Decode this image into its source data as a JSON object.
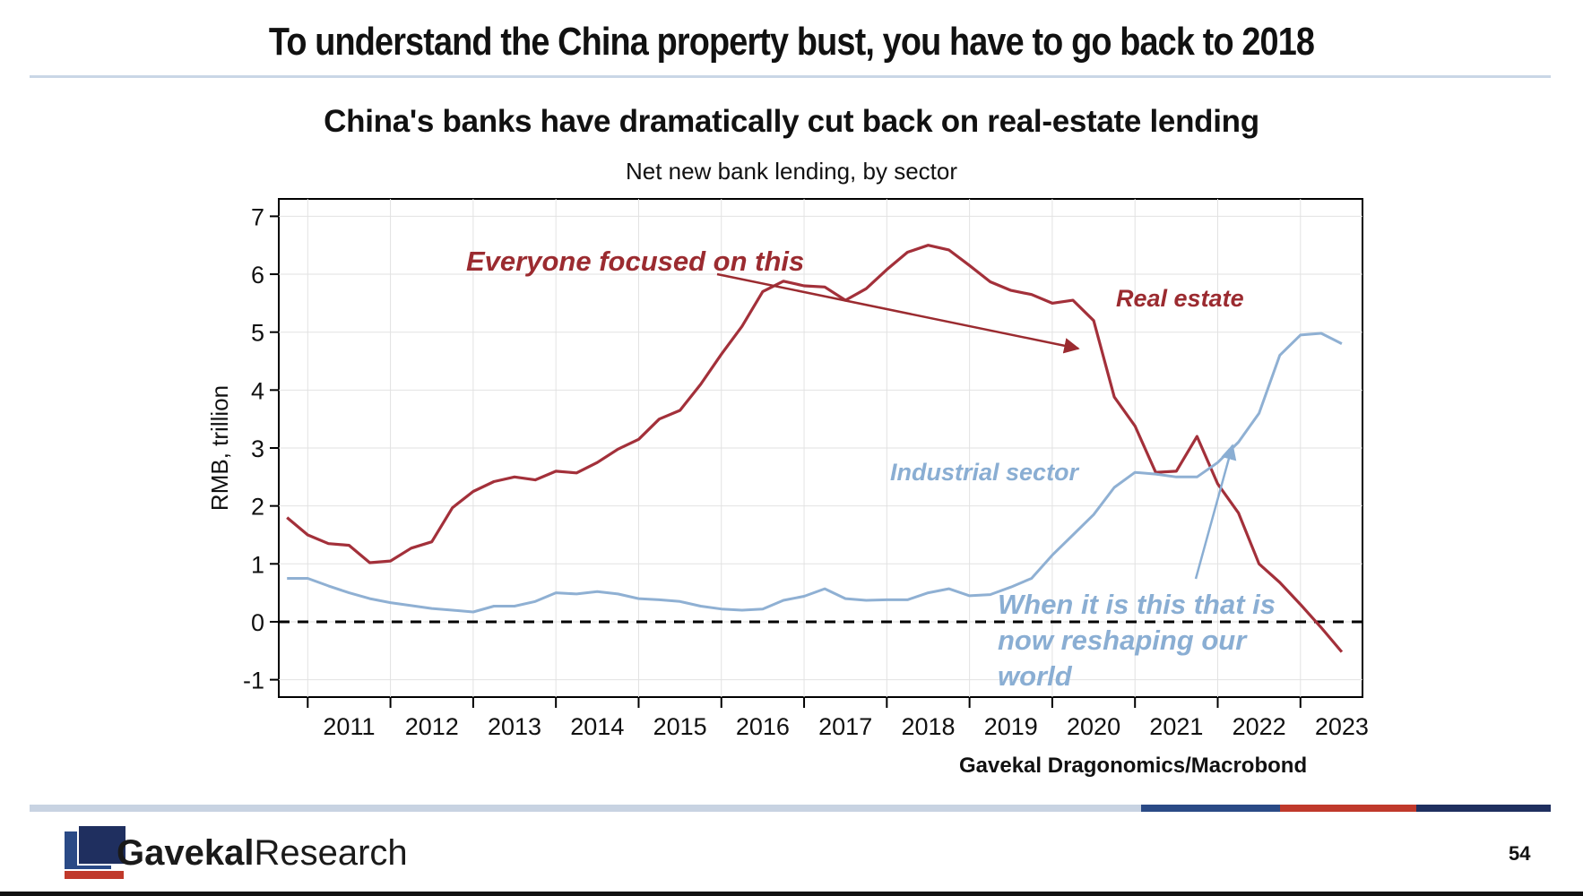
{
  "slide": {
    "title": "To understand the China property bust, you have to go back to 2018",
    "page_number": "54",
    "brand_bold": "Gavekal",
    "brand_regular": "Research",
    "source": "Gavekal Dragonomics/Macrobond"
  },
  "colors": {
    "real_estate": "#a3303a",
    "industrial": "#8fb0d3",
    "annotation_red": "#9b2b30",
    "annotation_blue": "#8aaed3"
  },
  "annotations": {
    "everyone_focused": "Everyone focused on this",
    "when_it_is_line1": "When it is this that is",
    "when_it_is_line2": "now reshaping our",
    "when_it_is_line3": "world"
  },
  "chart_data": {
    "type": "line",
    "title": "China's banks have dramatically cut back on real-estate lending",
    "subtitle": "Net new bank lending, by sector",
    "ylabel": "RMB, trillion",
    "xlabel": "",
    "ylim": [
      -1.3,
      7.3
    ],
    "yticks": [
      "-1",
      "0",
      "1",
      "2",
      "3",
      "4",
      "5",
      "6",
      "7"
    ],
    "xticks": [
      "2011",
      "2012",
      "2013",
      "2014",
      "2015",
      "2016",
      "2017",
      "2018",
      "2019",
      "2020",
      "2021",
      "2022",
      "2023"
    ],
    "grid": true,
    "zero_line": "dashed",
    "series": [
      {
        "name": "Real estate",
        "points": [
          [
            2010.75,
            1.8
          ],
          [
            2011.0,
            1.5
          ],
          [
            2011.25,
            1.35
          ],
          [
            2011.5,
            1.32
          ],
          [
            2011.75,
            1.02
          ],
          [
            2012.0,
            1.05
          ],
          [
            2012.25,
            1.27
          ],
          [
            2012.5,
            1.38
          ],
          [
            2012.75,
            1.97
          ],
          [
            2013.0,
            2.25
          ],
          [
            2013.25,
            2.42
          ],
          [
            2013.5,
            2.5
          ],
          [
            2013.75,
            2.45
          ],
          [
            2014.0,
            2.6
          ],
          [
            2014.25,
            2.57
          ],
          [
            2014.5,
            2.75
          ],
          [
            2014.75,
            2.98
          ],
          [
            2015.0,
            3.15
          ],
          [
            2015.25,
            3.5
          ],
          [
            2015.5,
            3.65
          ],
          [
            2015.75,
            4.1
          ],
          [
            2016.0,
            4.62
          ],
          [
            2016.25,
            5.1
          ],
          [
            2016.5,
            5.7
          ],
          [
            2016.75,
            5.88
          ],
          [
            2017.0,
            5.8
          ],
          [
            2017.25,
            5.78
          ],
          [
            2017.5,
            5.55
          ],
          [
            2017.75,
            5.75
          ],
          [
            2018.0,
            6.08
          ],
          [
            2018.25,
            6.38
          ],
          [
            2018.5,
            6.5
          ],
          [
            2018.75,
            6.42
          ],
          [
            2019.0,
            6.15
          ],
          [
            2019.25,
            5.87
          ],
          [
            2019.5,
            5.72
          ],
          [
            2019.75,
            5.65
          ],
          [
            2020.0,
            5.5
          ],
          [
            2020.25,
            5.55
          ],
          [
            2020.5,
            5.2
          ],
          [
            2020.75,
            3.88
          ],
          [
            2021.0,
            3.38
          ],
          [
            2021.25,
            2.58
          ],
          [
            2021.5,
            2.6
          ],
          [
            2021.75,
            3.2
          ],
          [
            2022.0,
            2.38
          ],
          [
            2022.25,
            1.88
          ],
          [
            2022.5,
            1.0
          ],
          [
            2022.75,
            0.68
          ],
          [
            2023.0,
            0.3
          ],
          [
            2023.25,
            -0.1
          ],
          [
            2023.5,
            -0.52
          ]
        ]
      },
      {
        "name": "Industrial sector",
        "points": [
          [
            2010.75,
            0.75
          ],
          [
            2011.0,
            0.75
          ],
          [
            2011.25,
            0.62
          ],
          [
            2011.5,
            0.5
          ],
          [
            2011.75,
            0.4
          ],
          [
            2012.0,
            0.33
          ],
          [
            2012.25,
            0.28
          ],
          [
            2012.5,
            0.23
          ],
          [
            2012.75,
            0.2
          ],
          [
            2013.0,
            0.17
          ],
          [
            2013.25,
            0.27
          ],
          [
            2013.5,
            0.27
          ],
          [
            2013.75,
            0.35
          ],
          [
            2014.0,
            0.5
          ],
          [
            2014.25,
            0.48
          ],
          [
            2014.5,
            0.52
          ],
          [
            2014.75,
            0.48
          ],
          [
            2015.0,
            0.4
          ],
          [
            2015.25,
            0.38
          ],
          [
            2015.5,
            0.35
          ],
          [
            2015.75,
            0.27
          ],
          [
            2016.0,
            0.22
          ],
          [
            2016.25,
            0.2
          ],
          [
            2016.5,
            0.22
          ],
          [
            2016.75,
            0.37
          ],
          [
            2017.0,
            0.44
          ],
          [
            2017.25,
            0.57
          ],
          [
            2017.5,
            0.4
          ],
          [
            2017.75,
            0.37
          ],
          [
            2018.0,
            0.38
          ],
          [
            2018.25,
            0.38
          ],
          [
            2018.5,
            0.5
          ],
          [
            2018.75,
            0.57
          ],
          [
            2019.0,
            0.45
          ],
          [
            2019.25,
            0.47
          ],
          [
            2019.5,
            0.6
          ],
          [
            2019.75,
            0.75
          ],
          [
            2020.0,
            1.15
          ],
          [
            2020.25,
            1.5
          ],
          [
            2020.5,
            1.85
          ],
          [
            2020.75,
            2.32
          ],
          [
            2021.0,
            2.58
          ],
          [
            2021.25,
            2.55
          ],
          [
            2021.5,
            2.5
          ],
          [
            2021.75,
            2.5
          ],
          [
            2022.0,
            2.75
          ],
          [
            2022.25,
            3.1
          ],
          [
            2022.5,
            3.6
          ],
          [
            2022.75,
            4.6
          ],
          [
            2023.0,
            4.95
          ],
          [
            2023.25,
            4.98
          ],
          [
            2023.5,
            4.8
          ]
        ]
      }
    ]
  }
}
